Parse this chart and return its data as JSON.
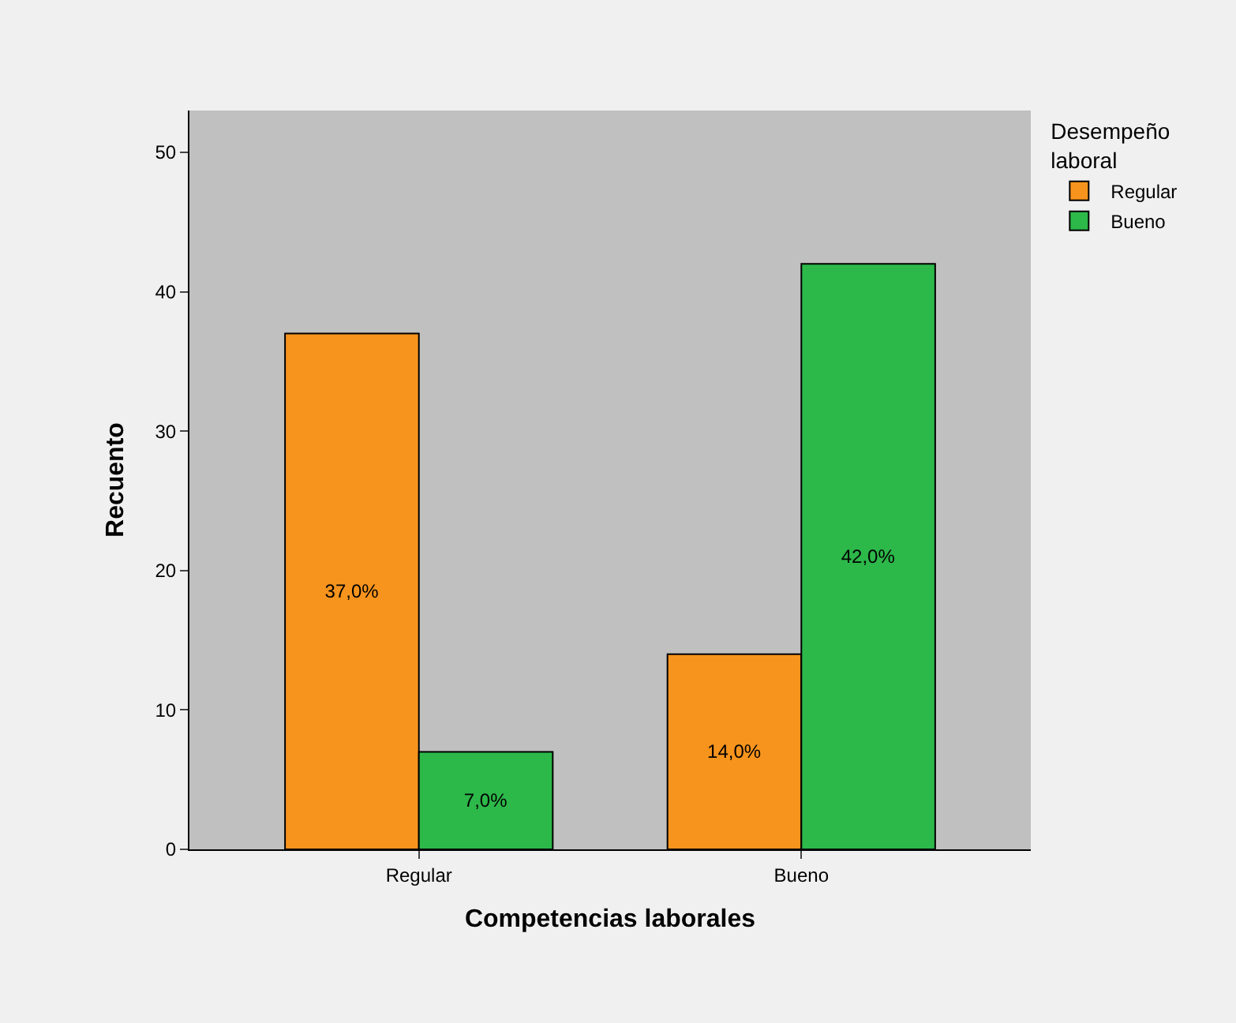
{
  "chart_data": {
    "type": "bar",
    "xlabel": "Competencias laborales",
    "ylabel": "Recuento",
    "legend_title": "Desempeño laboral",
    "categories": [
      "Regular",
      "Bueno"
    ],
    "series": [
      {
        "name": "Regular",
        "color": "#f7941d",
        "values": [
          37,
          14
        ],
        "value_labels": [
          "37,0%",
          "14,0%"
        ]
      },
      {
        "name": "Bueno",
        "color": "#2db84a",
        "values": [
          7,
          42
        ],
        "value_labels": [
          "7,0%",
          "42,0%"
        ]
      }
    ],
    "ylim": [
      0,
      53
    ],
    "yticks": [
      0,
      10,
      20,
      30,
      40,
      50
    ],
    "grid": false,
    "legend": "top right"
  }
}
